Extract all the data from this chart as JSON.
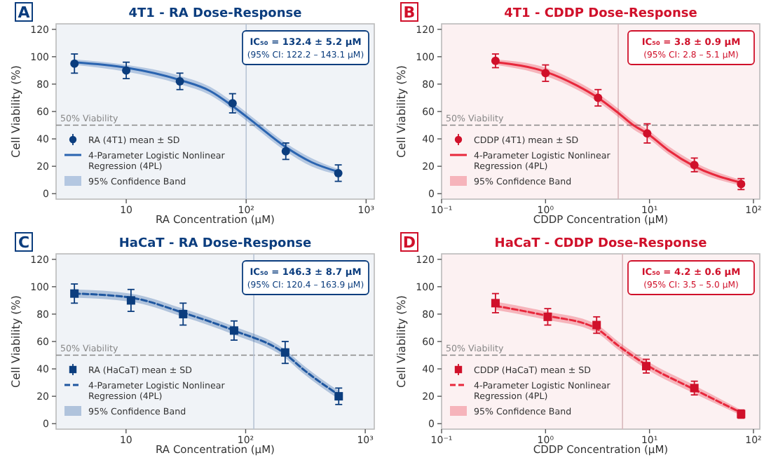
{
  "chart_data": [
    {
      "type": "scatter",
      "title": "4T1 - RA Dose-Response",
      "xlabel": "RA Concentration (μM)",
      "ylabel": "Cell Viability (%)",
      "log": "x",
      "marker": "circle",
      "legend": "bottom left",
      "xlim": [
        2.6,
        1170
      ],
      "xticks": [
        10,
        {
          "value": 100,
          "label": "10²"
        },
        {
          "value": 1000,
          "label": "10³"
        }
      ],
      "ylim": [
        -4,
        124
      ],
      "yticks": [
        0,
        20,
        40,
        60,
        80,
        100,
        120
      ],
      "annotations": [
        "A",
        "IC₅₀ = 132.4 ± 5.2 μM",
        "(95% CI: 122.2 – 143.1 μM)",
        "95% Confidence Band"
      ],
      "ref_lines": [
        {
          "axis": "y",
          "value": 50,
          "label": "50% Viability",
          "color": "#888888",
          "line_style": "dashed"
        },
        {
          "axis": "x",
          "value": 100,
          "color": "#b8c4d4",
          "line_style": "solid"
        }
      ],
      "series": [
        {
          "type": "line",
          "name": "4-Parameter Logistic Nonlinear Regression (4PL)",
          "color": "#2a64b0",
          "line_style": "solid",
          "marker": "none",
          "x": [
            3.7,
            10,
            28,
            50,
            77,
            120,
            214,
            350,
            586
          ],
          "values": [
            96,
            92,
            83,
            75,
            64,
            51,
            34,
            23,
            16
          ],
          "lower": [
            94,
            89,
            80,
            72,
            61,
            48,
            31,
            20,
            14
          ],
          "upper": [
            98,
            94,
            86,
            78,
            67,
            54,
            37,
            26,
            18
          ]
        },
        {
          "type": "scatter",
          "name": "RA (4T1) mean ± SD",
          "color": "#0b3d7e",
          "x": [
            3.7,
            10,
            28,
            77,
            214,
            586
          ],
          "values": [
            95,
            90,
            82,
            66,
            31,
            15
          ],
          "errors": [
            7,
            6,
            6,
            7,
            6,
            6
          ]
        }
      ]
    },
    {
      "type": "scatter",
      "title": "4T1 - CDDP Dose-Response",
      "xlabel": "CDDP Concentration (μM)",
      "ylabel": "Cell Viability (%)",
      "log": "x",
      "marker": "circle",
      "legend": "bottom left",
      "xlim": [
        0.1,
        115
      ],
      "xticks": [
        {
          "value": 0.1,
          "label": "10⁻¹"
        },
        {
          "value": 1,
          "label": "10⁰"
        },
        {
          "value": 10,
          "label": "10¹"
        },
        {
          "value": 100,
          "label": "10²"
        }
      ],
      "ylim": [
        -4,
        124
      ],
      "yticks": [
        0,
        20,
        40,
        60,
        80,
        100,
        120
      ],
      "annotations": [
        "B",
        "IC₅₀ = 3.8 ± 0.9 μM",
        "(95% CI: 2.8 – 5.1 μM)",
        "95% Confidence Band"
      ],
      "ref_lines": [
        {
          "axis": "y",
          "value": 50,
          "label": "50% Viability",
          "color": "#888888",
          "line_style": "dashed"
        },
        {
          "axis": "x",
          "value": 5,
          "color": "#d8b8bc",
          "line_style": "solid"
        }
      ],
      "series": [
        {
          "type": "line",
          "name": "4-Parameter Logistic Nonlinear Regression (4PL)",
          "color": "#e8283c",
          "line_style": "solid",
          "marker": "none",
          "x": [
            0.33,
            1,
            2,
            3.2,
            5,
            7,
            9.5,
            15,
            27,
            76
          ],
          "values": [
            96,
            89,
            79,
            70,
            59,
            50,
            44,
            32,
            20,
            8
          ],
          "lower": [
            94,
            86,
            76,
            67,
            56,
            47,
            41,
            29,
            17,
            6
          ],
          "upper": [
            98,
            92,
            82,
            73,
            62,
            53,
            47,
            35,
            23,
            10
          ]
        },
        {
          "type": "scatter",
          "name": "CDDP (4T1) mean ± SD",
          "color": "#d0102a",
          "x": [
            0.33,
            1,
            3.2,
            9.5,
            27,
            76
          ],
          "values": [
            97,
            88,
            70,
            44,
            21,
            7
          ],
          "errors": [
            5,
            6,
            6,
            7,
            5,
            4
          ]
        }
      ]
    },
    {
      "type": "scatter",
      "title": "HaCaT - RA Dose-Response",
      "xlabel": "RA Concentration (μM)",
      "ylabel": "Cell Viability (%)",
      "log": "x",
      "marker": "square",
      "legend": "bottom left",
      "xlim": [
        2.6,
        1190
      ],
      "xticks": [
        10,
        {
          "value": 100,
          "label": "10²"
        },
        {
          "value": 1000,
          "label": "10³"
        }
      ],
      "ylim": [
        -4,
        124
      ],
      "yticks": [
        0,
        20,
        40,
        60,
        80,
        100,
        120
      ],
      "annotations": [
        "C",
        "IC₅₀ = 146.3 ± 8.7 μM",
        "(95% CI: 120.4 – 163.9 μM)",
        "95% Confidence Band"
      ],
      "ref_lines": [
        {
          "axis": "y",
          "value": 50,
          "label": "50% Viability",
          "color": "#888888",
          "line_style": "dashed"
        },
        {
          "axis": "x",
          "value": 117,
          "color": "#b8c4d4",
          "line_style": "solid"
        }
      ],
      "series": [
        {
          "type": "line",
          "name": "4-Parameter Logistic Nonlinear Regression (4PL)",
          "color": "#1f57a0",
          "line_style": "dashed",
          "marker": "none",
          "x": [
            3.7,
            11,
            30,
            80,
            214,
            300,
            600
          ],
          "values": [
            95,
            92,
            81,
            68,
            51,
            40,
            21
          ],
          "lower": [
            92,
            89,
            78,
            65,
            48,
            37,
            18
          ],
          "upper": [
            98,
            95,
            84,
            71,
            54,
            43,
            24
          ]
        },
        {
          "type": "scatter",
          "name": "RA (HaCaT) mean ± SD",
          "color": "#0b3d7e",
          "x": [
            3.7,
            11,
            30,
            80,
            214,
            600
          ],
          "values": [
            95,
            90,
            80,
            68,
            52,
            20
          ],
          "errors": [
            7,
            8,
            8,
            7,
            8,
            6
          ]
        }
      ]
    },
    {
      "type": "scatter",
      "title": "HaCaT - CDDP Dose-Response",
      "xlabel": "CDDP Concentration (μM)",
      "ylabel": "Cell Viability (%)",
      "log": "x",
      "marker": "square",
      "legend": "bottom left",
      "xlim": [
        0.1,
        115
      ],
      "xticks": [
        {
          "value": 0.1,
          "label": "10⁻¹"
        },
        {
          "value": 1,
          "label": "10⁰"
        },
        {
          "value": 10,
          "label": "10¹"
        },
        {
          "value": 100,
          "label": "10²"
        }
      ],
      "ylim": [
        -4,
        124
      ],
      "yticks": [
        0,
        20,
        40,
        60,
        80,
        100,
        120
      ],
      "annotations": [
        "D",
        "IC₅₀ = 4.2 ± 0.6 μM",
        "(95% CI: 3.5 – 5.0 μM)",
        "95% Confidence Band"
      ],
      "ref_lines": [
        {
          "axis": "y",
          "value": 50,
          "label": "50% Viability",
          "color": "#888888",
          "line_style": "dashed"
        },
        {
          "axis": "x",
          "value": 5.5,
          "color": "#d8b8bc",
          "line_style": "solid"
        }
      ],
      "series": [
        {
          "type": "line",
          "name": "4-Parameter Logistic Nonlinear Regression (4PL)",
          "color": "#e8283c",
          "line_style": "dashed",
          "marker": "none",
          "x": [
            0.33,
            1,
            3,
            5,
            9.3,
            27,
            76
          ],
          "values": [
            86,
            79,
            70,
            57,
            43,
            25,
            8
          ],
          "lower": [
            83,
            76,
            67,
            54,
            40,
            22,
            6
          ],
          "upper": [
            89,
            82,
            73,
            60,
            46,
            28,
            10
          ]
        },
        {
          "type": "scatter",
          "name": "CDDP (HaCaT) mean ± SD",
          "color": "#d0102a",
          "x": [
            0.33,
            1.05,
            3.1,
            9.3,
            27,
            76
          ],
          "values": [
            88,
            78,
            72,
            42,
            26,
            7
          ],
          "errors": [
            7,
            6,
            6,
            5,
            5,
            3
          ]
        }
      ]
    }
  ]
}
